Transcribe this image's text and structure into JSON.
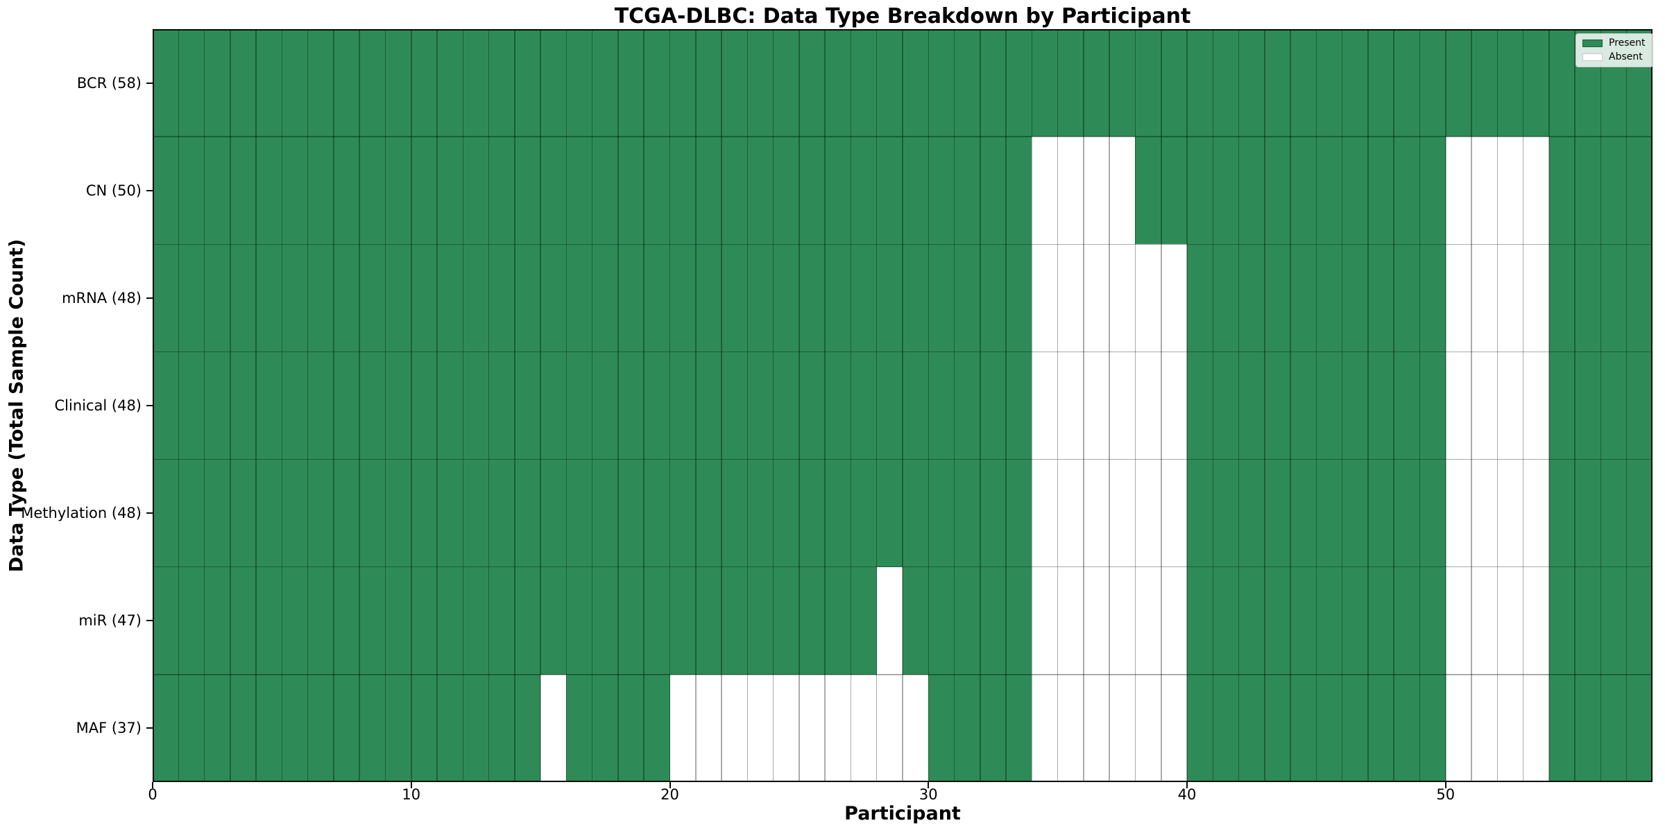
{
  "chart_data": {
    "type": "heatmap",
    "title": "TCGA-DLBC: Data Type Breakdown by Participant",
    "xlabel": "Participant",
    "ylabel": "Data Type (Total Sample Count)",
    "x_range": [
      0,
      58
    ],
    "x_ticks": [
      0,
      10,
      20,
      30,
      40,
      50
    ],
    "grid": true,
    "legend_position": "upper right",
    "legend": [
      {
        "label": "Present",
        "color": "#2e8b57"
      },
      {
        "label": "Absent",
        "color": "#ffffff"
      }
    ],
    "colors": {
      "present": "#2e8b57",
      "absent": "#ffffff",
      "gridline": "rgba(0,0,0,0.33)",
      "axis_border": "#0a0a0a"
    },
    "rows": [
      {
        "label": "BCR (58)",
        "present_count": 58,
        "absent_participants": []
      },
      {
        "label": "CN (50)",
        "present_count": 50,
        "absent_participants": [
          34,
          35,
          36,
          37,
          50,
          51,
          52,
          53
        ]
      },
      {
        "label": "mRNA (48)",
        "present_count": 48,
        "absent_participants": [
          34,
          35,
          36,
          37,
          38,
          39,
          50,
          51,
          52,
          53
        ]
      },
      {
        "label": "Clinical (48)",
        "present_count": 48,
        "absent_participants": [
          34,
          35,
          36,
          37,
          38,
          39,
          50,
          51,
          52,
          53
        ]
      },
      {
        "label": "Methylation (48)",
        "present_count": 48,
        "absent_participants": [
          34,
          35,
          36,
          37,
          38,
          39,
          50,
          51,
          52,
          53
        ]
      },
      {
        "label": "miR (47)",
        "present_count": 47,
        "absent_participants": [
          28,
          34,
          35,
          36,
          37,
          38,
          39,
          50,
          51,
          52,
          53
        ]
      },
      {
        "label": "MAF (37)",
        "present_count": 37,
        "absent_participants": [
          15,
          20,
          21,
          22,
          23,
          24,
          25,
          26,
          27,
          28,
          29,
          34,
          35,
          36,
          37,
          38,
          39,
          50,
          51,
          52,
          53
        ]
      }
    ]
  }
}
